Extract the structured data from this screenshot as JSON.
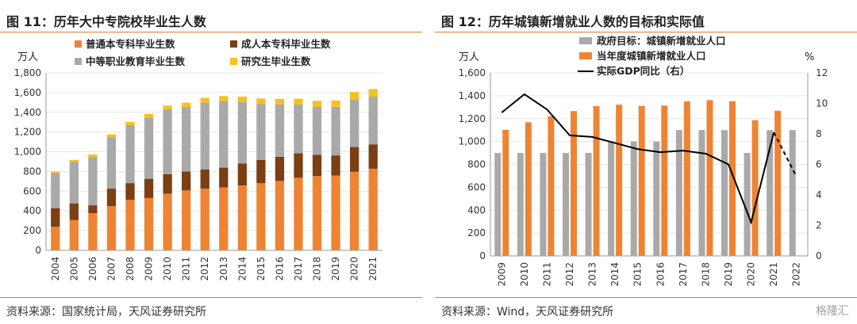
{
  "chart_data": [
    {
      "type": "bar",
      "stacked": true,
      "title": "图 11：历年大中专院校毕业生人数",
      "unit_label": "万人",
      "source": "资料来源：国家统计局，天风证券研究所",
      "categories": [
        "2004",
        "2005",
        "2006",
        "2007",
        "2008",
        "2009",
        "2010",
        "2011",
        "2012",
        "2013",
        "2014",
        "2015",
        "2016",
        "2017",
        "2018",
        "2019",
        "2020",
        "2021"
      ],
      "ylim": [
        0,
        1800
      ],
      "yticks": [
        "0",
        "200",
        "400",
        "600",
        "800",
        "1,000",
        "1,200",
        "1,400",
        "1,600",
        "1,800"
      ],
      "legend_position": "top",
      "series": [
        {
          "name": "普通本专科毕业生数",
          "color": "#ee8433",
          "values": [
            239,
            307,
            377,
            448,
            512,
            531,
            575,
            608,
            625,
            639,
            659,
            681,
            704,
            736,
            753,
            759,
            797,
            827
          ]
        },
        {
          "name": "成人本专科毕业生数",
          "color": "#7b3f13",
          "values": [
            189,
            167,
            80,
            178,
            170,
            195,
            197,
            191,
            195,
            200,
            222,
            236,
            244,
            248,
            217,
            204,
            251,
            248
          ]
        },
        {
          "name": "中等职业教育毕业生数",
          "color": "#a9a9a9",
          "values": [
            356,
            425,
            490,
            519,
            587,
            621,
            659,
            656,
            678,
            675,
            625,
            568,
            532,
            496,
            487,
            493,
            485,
            484
          ]
        },
        {
          "name": "研究生毕业生数",
          "color": "#f6c21b",
          "values": [
            15,
            19,
            26,
            31,
            34,
            37,
            38,
            43,
            49,
            51,
            54,
            55,
            56,
            58,
            60,
            64,
            73,
            77
          ]
        }
      ]
    },
    {
      "type": "bar+line",
      "title": "图 12：历年城镇新增就业人数的目标和实际值",
      "unit_label_left": "万人",
      "unit_label_right": "%",
      "source": "资料来源：Wind，天风证券研究所",
      "categories": [
        "2009",
        "2010",
        "2011",
        "2012",
        "2013",
        "2014",
        "2015",
        "2016",
        "2017",
        "2018",
        "2019",
        "2020",
        "2021",
        "2022"
      ],
      "ylim": [
        0,
        1600
      ],
      "yticks": [
        "0",
        "200",
        "400",
        "600",
        "800",
        "1,000",
        "1,200",
        "1,400",
        "1,600"
      ],
      "ylim_right": [
        0,
        12
      ],
      "yticks_right": [
        "0",
        "2",
        "4",
        "6",
        "8",
        "10",
        "12"
      ],
      "legend_position": "top",
      "series": [
        {
          "name": "政府目标：城镇新增就业人口",
          "kind": "bar",
          "axis": "left",
          "color": "#a9a9a9",
          "values": [
            900,
            900,
            900,
            900,
            900,
            1000,
            1000,
            1000,
            1100,
            1100,
            1100,
            900,
            1100,
            1100
          ]
        },
        {
          "name": "当年度城镇新增就业人口",
          "kind": "bar",
          "axis": "left",
          "color": "#ee8433",
          "values": [
            1102,
            1168,
            1221,
            1266,
            1310,
            1322,
            1312,
            1314,
            1351,
            1361,
            1352,
            1186,
            1269,
            null
          ]
        },
        {
          "name": "实际GDP同比（右）",
          "kind": "line",
          "axis": "right",
          "color": "#000000",
          "values": [
            9.4,
            10.6,
            9.6,
            7.9,
            7.8,
            7.4,
            7.0,
            6.8,
            6.9,
            6.7,
            6.0,
            2.2,
            8.1,
            5.2
          ],
          "dashed_from_index": 12
        }
      ]
    }
  ],
  "watermark": "格隆汇"
}
